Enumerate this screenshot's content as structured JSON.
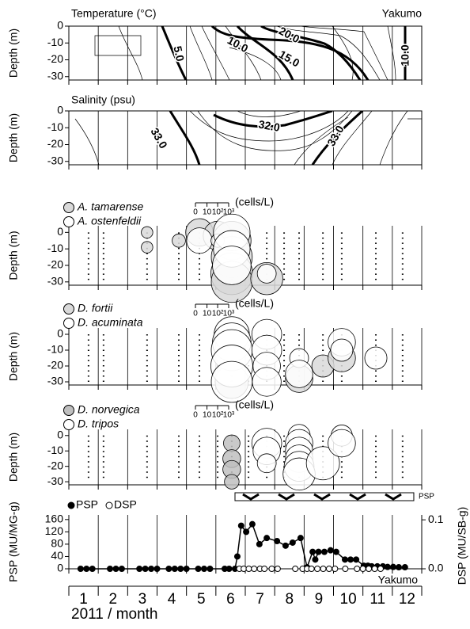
{
  "chart_data": [
    {
      "type": "contour",
      "title": "Temperature (°C)",
      "label": "Yakumo",
      "y_label": "Depth (m)",
      "ylim": [
        -32,
        0
      ],
      "yticks": [
        0,
        -10,
        -20,
        -30
      ],
      "contour_labels": [
        "5.0",
        "10.0",
        "15.0",
        "20.0",
        "10.0"
      ]
    },
    {
      "type": "contour",
      "title": "Salinity (psu)",
      "y_label": "Depth (m)",
      "ylim": [
        -32,
        0
      ],
      "yticks": [
        0,
        -10,
        -20,
        -30
      ],
      "contour_labels": [
        "33.0",
        "32.0",
        "33.0"
      ]
    },
    {
      "type": "bubble",
      "y_label": "Depth (m)",
      "ylim": [
        -32,
        4
      ],
      "yticks": [
        0,
        -10,
        -20,
        -30
      ],
      "size_label": "(cells/L)",
      "size_ticks": [
        0,
        10,
        {
          "value": 100,
          "label": "10²"
        },
        {
          "value": 1000,
          "label": "10³"
        }
      ],
      "stations": [
        1.17,
        1.68,
        3.16,
        4.24,
        4.94,
        5.56,
        6.04,
        6.61,
        7.23,
        7.82,
        8.33,
        9.14,
        9.78,
        10.94,
        11.85
      ],
      "series": [
        {
          "name": "A. tamarense",
          "color": "#d9d9d9",
          "x": [
            3.16,
            3.16,
            4.24,
            4.94,
            5.56,
            6.04,
            6.04,
            6.04,
            6.04,
            7.23
          ],
          "y": [
            0,
            -9,
            -5,
            0,
            -2,
            -5,
            -15,
            -25,
            -30,
            -28
          ],
          "size": [
            10,
            10,
            15,
            300,
            400,
            3000,
            5000,
            6000,
            5000,
            800
          ]
        },
        {
          "name": "A. ostenfeldii",
          "color": "#ffffff",
          "x": [
            4.94,
            5.56,
            6.04,
            6.04,
            6.04,
            7.23
          ],
          "y": [
            -5,
            -5,
            0,
            -10,
            -20,
            -25
          ],
          "size": [
            200,
            15,
            2000,
            2000,
            3000,
            50
          ]
        }
      ]
    },
    {
      "type": "bubble",
      "y_label": "Depth (m)",
      "ylim": [
        -32,
        4
      ],
      "yticks": [
        0,
        -10,
        -20,
        -30
      ],
      "size_label": "(cells/L)",
      "size_ticks": [
        0,
        10,
        {
          "value": 100,
          "label": "10²"
        },
        {
          "value": 1000,
          "label": "10³"
        }
      ],
      "stations": [
        1.17,
        1.68,
        3.16,
        4.24,
        4.94,
        5.56,
        6.04,
        6.61,
        7.23,
        7.82,
        8.33,
        9.14,
        9.78,
        10.94,
        11.85
      ],
      "series": [
        {
          "name": "D. fortii",
          "color": "#d9d9d9",
          "x": [
            6.04,
            8.33,
            9.14,
            9.78
          ],
          "y": [
            -30,
            -28,
            -20,
            -15
          ],
          "size": [
            1000,
            300,
            100,
            300
          ]
        },
        {
          "name": "D. acuminata",
          "color": "#ffffff",
          "x": [
            6.04,
            6.04,
            6.04,
            6.04,
            6.04,
            7.23,
            7.23,
            7.23,
            7.23,
            8.33,
            8.33,
            9.78,
            9.78,
            10.94
          ],
          "y": [
            0,
            -5,
            -10,
            -20,
            -30,
            0,
            -10,
            -20,
            -30,
            -15,
            -25,
            -5,
            -10,
            -15
          ],
          "size": [
            1500,
            3000,
            5000,
            6000,
            5000,
            500,
            500,
            300,
            400,
            50,
            300,
            300,
            100,
            100
          ]
        }
      ]
    },
    {
      "type": "bubble",
      "y_label": "Depth (m)",
      "ylim": [
        -32,
        4
      ],
      "yticks": [
        0,
        -10,
        -20,
        -30
      ],
      "size_label": "(cells/L)",
      "size_ticks": [
        0,
        10,
        {
          "value": 100,
          "label": "10²"
        },
        {
          "value": 1000,
          "label": "10³"
        }
      ],
      "stations": [
        1.17,
        1.68,
        3.16,
        4.24,
        4.94,
        5.56,
        6.04,
        6.61,
        7.23,
        7.82,
        8.33,
        9.14,
        9.78,
        10.94,
        11.85
      ],
      "series": [
        {
          "name": "D. norvegica",
          "color": "#bfbfbf",
          "x": [
            6.04,
            6.04,
            6.04,
            6.04
          ],
          "y": [
            -5,
            -15,
            -22,
            -30
          ],
          "size": [
            30,
            40,
            40,
            20
          ]
        },
        {
          "name": "D. tripos",
          "color": "#ffffff",
          "x": [
            7.23,
            7.23,
            7.23,
            8.33,
            8.33,
            8.33,
            8.33,
            8.33,
            8.33,
            9.14,
            9.78,
            9.78
          ],
          "y": [
            -5,
            -10,
            -18,
            0,
            -5,
            -10,
            -15,
            -20,
            -25,
            -18,
            0,
            -5
          ],
          "size": [
            500,
            300,
            50,
            100,
            300,
            300,
            300,
            500,
            800,
            1000,
            80,
            300
          ]
        }
      ]
    },
    {
      "type": "line",
      "label": "Yakumo",
      "y_label": "PSP (MU/MG-g)",
      "y2_label": "DSP (MU/SB-g)",
      "x_label": "2011 / month",
      "categories": [
        "1",
        "2",
        "3",
        "4",
        "5",
        "6",
        "7",
        "8",
        "9",
        "10",
        "11",
        "12"
      ],
      "xlim": [
        0.5,
        12.5
      ],
      "ylim": [
        0,
        175
      ],
      "yticks": [
        0,
        40,
        80,
        120,
        160
      ],
      "y2lim": [
        0,
        0.11
      ],
      "y2ticks": [
        {
          "value": 0,
          "label": "0.0"
        },
        0.1
      ],
      "psp_period": {
        "label": "PSP",
        "x": [
          6.15,
          12.23
        ]
      },
      "series": [
        {
          "name": "PSP",
          "color": "#000000",
          "x": [
            0.9,
            1.1,
            1.3,
            1.9,
            2.1,
            2.3,
            2.9,
            3.1,
            3.3,
            3.5,
            3.9,
            4.1,
            4.3,
            4.5,
            4.9,
            5.1,
            5.3,
            5.8,
            5.95,
            6.15,
            6.23,
            6.36,
            6.53,
            6.74,
            6.98,
            7.23,
            7.58,
            7.87,
            8.11,
            8.38,
            8.6,
            8.79,
            8.88,
            8.99,
            9.19,
            9.4,
            9.59,
            9.89,
            10.08,
            10.27,
            10.53,
            10.67,
            10.8,
            10.99,
            11.18,
            11.34,
            11.53,
            11.72,
            11.93
          ],
          "values": [
            0,
            0,
            0,
            0,
            0,
            0,
            0,
            0,
            0,
            0,
            0,
            0,
            0,
            0,
            0,
            0,
            0,
            0,
            0,
            0,
            40,
            140,
            120,
            145,
            80,
            100,
            90,
            75,
            85,
            100,
            5,
            55,
            30,
            55,
            55,
            60,
            55,
            30,
            30,
            30,
            10,
            10,
            8,
            8,
            8,
            6,
            6,
            5,
            5
          ]
        },
        {
          "name": "DSP",
          "color": "#ffffff",
          "axis": "y2",
          "x": [
            6.3,
            6.45,
            6.62,
            6.8,
            7.0,
            7.15,
            7.4,
            7.6,
            8.2,
            8.45,
            8.6,
            8.75,
            8.95,
            9.15,
            9.35,
            9.55,
            9.9,
            10.3,
            10.5,
            10.7,
            10.9,
            11.1
          ],
          "values": [
            0,
            0,
            0,
            0,
            0,
            0,
            0,
            0,
            0,
            0,
            0,
            0,
            0,
            0,
            0,
            0,
            0,
            0,
            0,
            0,
            0,
            0
          ]
        }
      ]
    }
  ]
}
